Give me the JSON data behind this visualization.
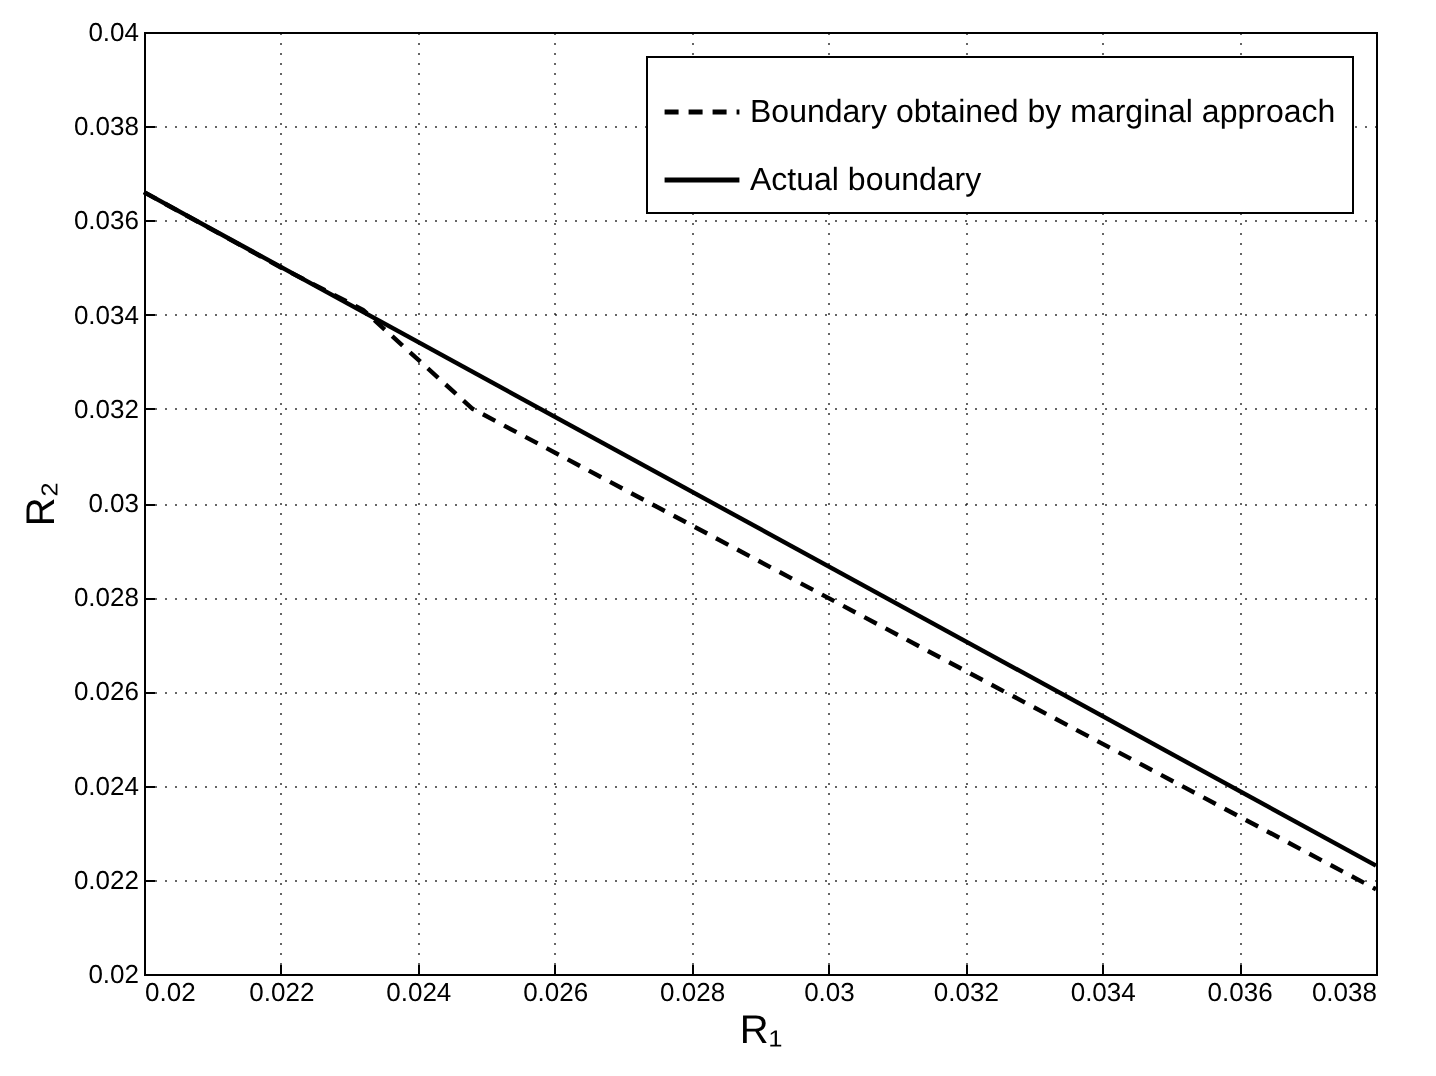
{
  "chart_data": {
    "type": "line",
    "xlabel": "R₁",
    "ylabel": "R₂",
    "series": [
      {
        "name": "Boundary obtained by marginal approach",
        "color": "#000000",
        "line_style": "dashed",
        "x": [
          0.02,
          0.022,
          0.0232,
          0.0248,
          0.038
        ],
        "values": [
          0.0366,
          0.035,
          0.0341,
          0.032,
          0.0218
        ]
      },
      {
        "name": "Actual boundary",
        "color": "#000000",
        "line_style": "solid",
        "x": [
          0.02,
          0.038
        ],
        "values": [
          0.0366,
          0.0223
        ]
      }
    ],
    "xlim": [
      0.02,
      0.038
    ],
    "xticks": [
      0.02,
      0.022,
      0.024,
      0.026,
      0.028,
      0.03,
      0.032,
      0.034,
      0.036,
      0.038
    ],
    "ylim": [
      0.02,
      0.04
    ],
    "yticks": [
      0.02,
      0.022,
      0.024,
      0.026,
      0.028,
      0.03,
      0.032,
      0.034,
      0.036,
      0.038,
      0.04
    ],
    "grid": true,
    "legend": "top right"
  }
}
